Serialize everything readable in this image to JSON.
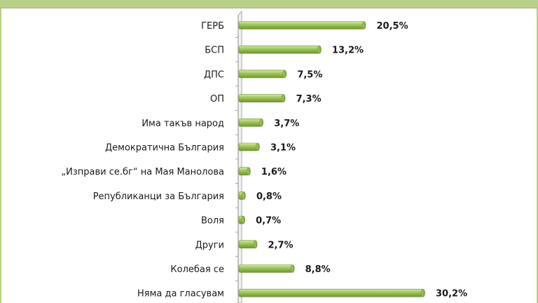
{
  "chart_data": {
    "type": "bar",
    "orientation": "horizontal",
    "categories": [
      "ГЕРБ",
      "БСП",
      "ДПС",
      "ОП",
      "Има такъв народ",
      "Демократична България",
      "„Изправи се.бг“ на Мая Манолова",
      "Републиканци за България",
      "Воля",
      "Други",
      "Колебая се",
      "Няма да гласувам"
    ],
    "values": [
      20.5,
      13.2,
      7.5,
      7.3,
      3.7,
      3.1,
      1.6,
      0.8,
      0.7,
      2.7,
      8.8,
      30.2
    ],
    "value_labels": [
      "20,5%",
      "13,2%",
      "7,5%",
      "7,3%",
      "3,7%",
      "3,1%",
      "1,6%",
      "0,8%",
      "0,7%",
      "2,7%",
      "8,8%",
      "30,2%"
    ],
    "xlim": [
      0,
      35
    ],
    "bar_color": "#8fb84a",
    "bar_highlight": "#c9e08f",
    "grid": false,
    "legend": "none"
  }
}
